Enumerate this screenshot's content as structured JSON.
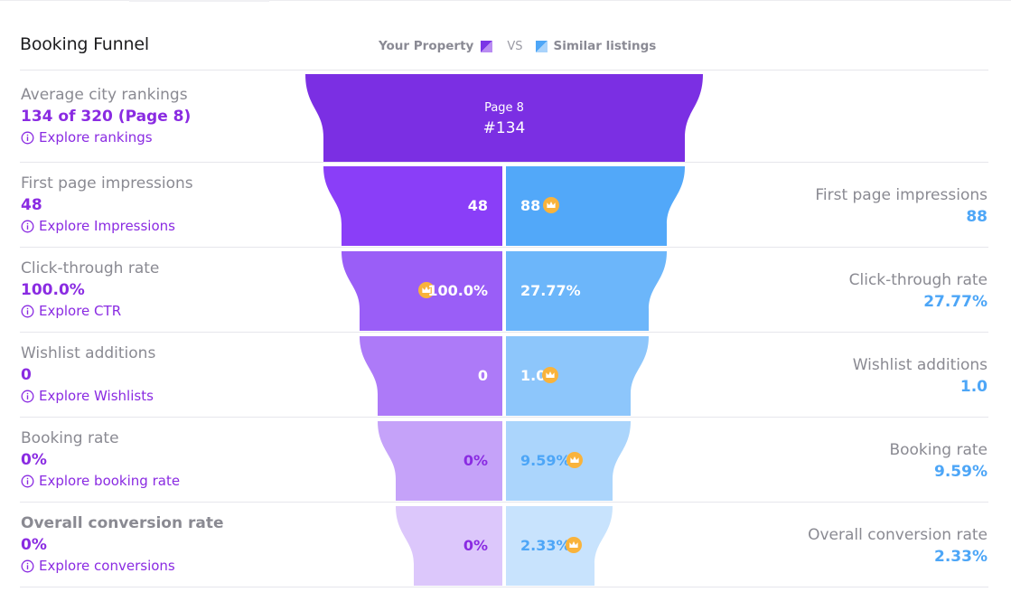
{
  "title": "Booking Funnel",
  "legend": {
    "your_property": "Your Property",
    "vs": "VS",
    "similar": "Similar listings",
    "your_color": "#7b35e6",
    "similar_color": "#4da6f7"
  },
  "rankings": {
    "label": "Average city rankings",
    "value": "134 of 320 (Page 8)",
    "link": "Explore rankings",
    "funnel_page": "Page 8",
    "funnel_rank": "#134"
  },
  "rows": [
    {
      "label": "First page impressions",
      "value": "48",
      "link": "Explore Impressions",
      "funnel_left": "48",
      "funnel_right": "88",
      "crown": "right",
      "right_label": "First page impressions",
      "right_value": "88"
    },
    {
      "label": "Click-through rate",
      "value": "100.0%",
      "link": "Explore CTR",
      "funnel_left": "100.0%",
      "funnel_right": "27.77%",
      "crown": "left",
      "right_label": "Click-through rate",
      "right_value": "27.77%"
    },
    {
      "label": "Wishlist additions",
      "value": "0",
      "link": "Explore Wishlists",
      "funnel_left": "0",
      "funnel_right": "1.0",
      "crown": "right",
      "right_label": "Wishlist additions",
      "right_value": "1.0"
    },
    {
      "label": "Booking rate",
      "value": "0%",
      "link": "Explore booking rate",
      "funnel_left": "0%",
      "funnel_right": "9.59%",
      "crown": "right",
      "right_label": "Booking rate",
      "right_value": "9.59%"
    },
    {
      "label": "Overall conversion rate",
      "value": "0%",
      "link": "Explore conversions",
      "funnel_left": "0%",
      "funnel_right": "2.33%",
      "crown": "right",
      "right_label": "Overall conversion rate",
      "right_value": "2.33%"
    }
  ]
}
